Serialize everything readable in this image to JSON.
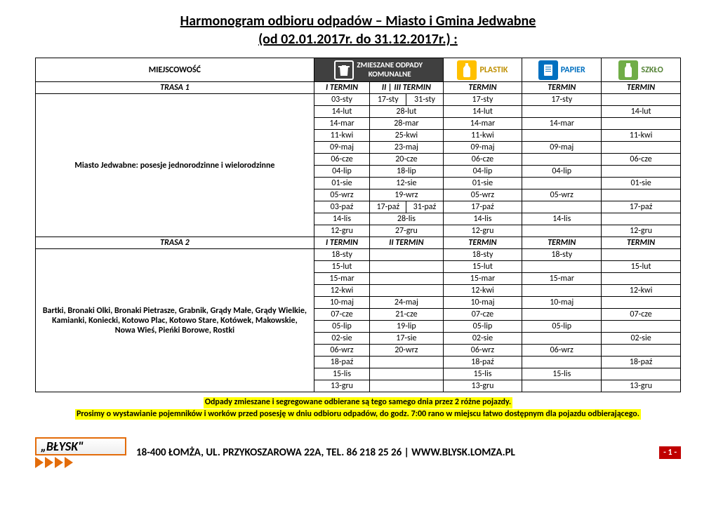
{
  "title": "Harmonogram odbioru odpadów – Miasto i Gmina Jedwabne",
  "subtitle": "(od 02.01.2017r. do 31.12.2017r.) :",
  "loc_header": "MIEJSCOWOŚĆ",
  "categories": {
    "mixed": {
      "label": "ZMIESZANE ODPADY KOMUNALNE",
      "bg": "#404040",
      "icon_bg": "#404040"
    },
    "plastic": {
      "label": "PLASTIK",
      "bg": "#ffffff",
      "icon_bg": "#ffc000"
    },
    "paper": {
      "label": "PAPIER",
      "bg": "#ffffff",
      "icon_bg": "#0070c0"
    },
    "glass": {
      "label": "SZKŁO",
      "bg": "#ffffff",
      "icon_bg": "#70ad47"
    }
  },
  "route1": {
    "name": "TRASA 1",
    "cols": [
      "I TERMIN",
      "II | III TERMIN",
      "TERMIN",
      "TERMIN",
      "TERMIN"
    ],
    "location": "Miasto Jedwabne: posesje jednorodzinne i wielorodzinne",
    "rows": [
      [
        "03-sty",
        "17-sty",
        "31-sty",
        "17-sty",
        "17-sty",
        ""
      ],
      [
        "14-lut",
        "28-lut",
        "",
        "14-lut",
        "",
        "14-lut"
      ],
      [
        "14-mar",
        "28-mar",
        "",
        "14-mar",
        "14-mar",
        ""
      ],
      [
        "11-kwi",
        "25-kwi",
        "",
        "11-kwi",
        "",
        "11-kwi"
      ],
      [
        "09-maj",
        "23-maj",
        "",
        "09-maj",
        "09-maj",
        ""
      ],
      [
        "06-cze",
        "20-cze",
        "",
        "06-cze",
        "",
        "06-cze"
      ],
      [
        "04-lip",
        "18-lip",
        "",
        "04-lip",
        "04-lip",
        ""
      ],
      [
        "01-sie",
        "12-sie",
        "",
        "01-sie",
        "",
        "01-sie"
      ],
      [
        "05-wrz",
        "19-wrz",
        "",
        "05-wrz",
        "05-wrz",
        ""
      ],
      [
        "03-paź",
        "17-paź",
        "31-paź",
        "17-paź",
        "",
        "17-paź"
      ],
      [
        "14-lis",
        "28-lis",
        "",
        "14-lis",
        "14-lis",
        ""
      ],
      [
        "12-gru",
        "27-gru",
        "",
        "12-gru",
        "",
        "12-gru"
      ]
    ]
  },
  "route2": {
    "name": "TRASA 2",
    "cols": [
      "I TERMIN",
      "II TERMIN",
      "TERMIN",
      "TERMIN",
      "TERMIN"
    ],
    "location": "Bartki, Bronaki Olki, Bronaki Pietrasze, Grabnik, Grądy Małe, Grądy Wielkie, Kamianki, Koniecki, Kotowo Plac, Kotowo Stare, Kotówek, Makowskie, Nowa Wieś, Pieńki Borowe, Rostki",
    "rows": [
      [
        "18-sty",
        "",
        "18-sty",
        "18-sty",
        ""
      ],
      [
        "15-lut",
        "",
        "15-lut",
        "",
        "15-lut"
      ],
      [
        "15-mar",
        "",
        "15-mar",
        "15-mar",
        ""
      ],
      [
        "12-kwi",
        "",
        "12-kwi",
        "",
        "12-kwi"
      ],
      [
        "10-maj",
        "24-maj",
        "10-maj",
        "10-maj",
        ""
      ],
      [
        "07-cze",
        "21-cze",
        "07-cze",
        "",
        "07-cze"
      ],
      [
        "05-lip",
        "19-lip",
        "05-lip",
        "05-lip",
        ""
      ],
      [
        "02-sie",
        "17-sie",
        "02-sie",
        "",
        "02-sie"
      ],
      [
        "06-wrz",
        "20-wrz",
        "06-wrz",
        "06-wrz",
        ""
      ],
      [
        "18-paź",
        "",
        "18-paź",
        "",
        "18-paź"
      ],
      [
        "15-lis",
        "",
        "15-lis",
        "15-lis",
        ""
      ],
      [
        "13-gru",
        "",
        "13-gru",
        "",
        "13-gru"
      ]
    ]
  },
  "notes": [
    "Odpady zmieszane i segregowane odbierane są tego samego dnia przez 2 różne pojazdy.",
    "Prosimy o wystawianie pojemników i worków przed posesję w dniu odbioru odpadów, do godz. 7:00 rano w miejscu łatwo dostępnym dla pojazdu odbierającego."
  ],
  "logo": "„BŁYSK\"",
  "address": "18-400 ŁOMŻA, UL. PRZYKOSZAROWA 22A, TEL. 86 218 25 26 | WWW.BLYSK.LOMZA.PL",
  "page": "- 1 -",
  "colors": {
    "note_bg": "#ffff00",
    "page_bg": "#c00000"
  }
}
